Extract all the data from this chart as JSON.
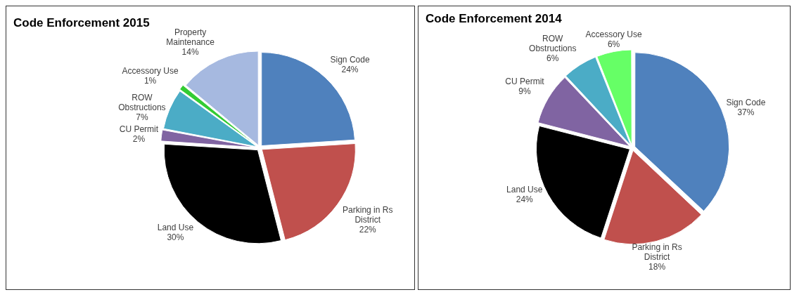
{
  "chart_data": [
    {
      "type": "pie",
      "title": "Code Enforcement 2015",
      "categories": [
        "Sign Code",
        "Parking in Rs District",
        "Land Use",
        "CU Permit",
        "ROW Obstructions",
        "Accessory Use",
        "Property Maintenance"
      ],
      "values": [
        24,
        22,
        30,
        2,
        7,
        1,
        14
      ],
      "value_labels": [
        "24%",
        "22%",
        "30%",
        "2%",
        "7%",
        "1%",
        "14%"
      ],
      "colors": [
        "#4f81bd",
        "#c0504d",
        "#000000",
        "#8064a2",
        "#4bacc6",
        "#33cc33",
        "#a6b9e0"
      ]
    },
    {
      "type": "pie",
      "title": "Code Enforcement 2014",
      "categories": [
        "Sign Code",
        "Parking in Rs District",
        "Land Use",
        "CU Permit",
        "ROW Obstructions",
        "Accessory Use"
      ],
      "values": [
        37,
        18,
        24,
        9,
        6,
        6
      ],
      "value_labels": [
        "37%",
        "18%",
        "24%",
        "9%",
        "6%",
        "6%"
      ],
      "colors": [
        "#4f81bd",
        "#c0504d",
        "#000000",
        "#8064a2",
        "#4bacc6",
        "#66ff66"
      ]
    }
  ]
}
